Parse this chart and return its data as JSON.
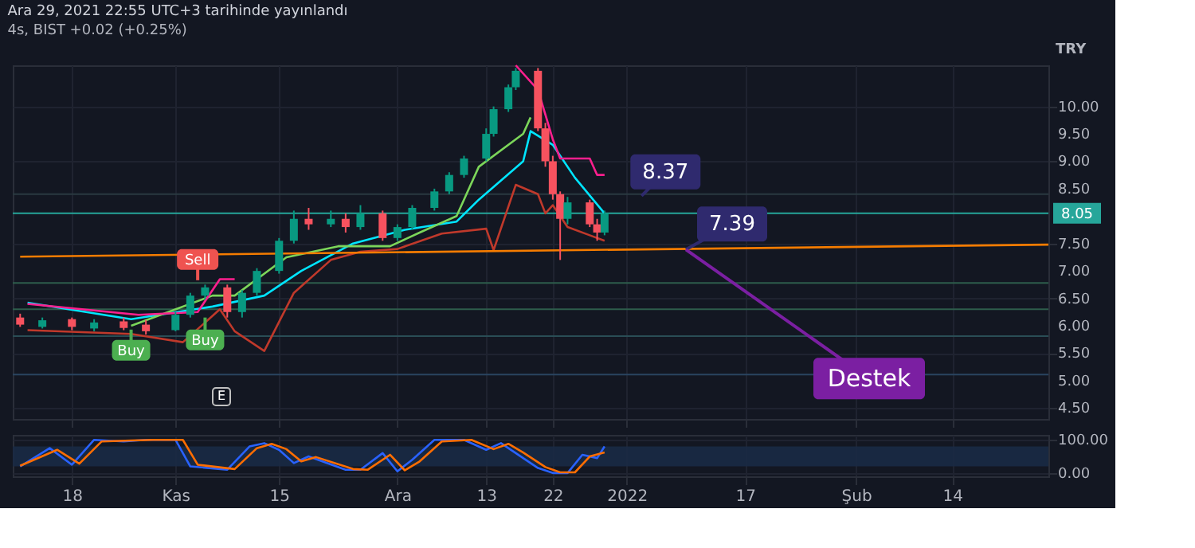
{
  "chart_data": [
    {
      "type": "candlestick",
      "title": "Ara 29, 2021 22:55 UTC+3 tarihinde yayınlandı",
      "subtitle": "4s, BIST +0.02 (+0.25%)",
      "ylabel": "TRY",
      "x": [
        "2021-10-11",
        "2021-10-14",
        "2021-10-18",
        "2021-10-21",
        "2021-10-25",
        "2021-10-28",
        "2021-11-01",
        "2021-11-03",
        "2021-11-05",
        "2021-11-08",
        "2021-11-10",
        "2021-11-12",
        "2021-11-15",
        "2021-11-17",
        "2021-11-19",
        "2021-11-22",
        "2021-11-24",
        "2021-11-26",
        "2021-11-29",
        "2021-12-01",
        "2021-12-03",
        "2021-12-06",
        "2021-12-08",
        "2021-12-10",
        "2021-12-13",
        "2021-12-14",
        "2021-12-16",
        "2021-12-17",
        "2021-12-20",
        "2021-12-21",
        "2021-12-22",
        "2021-12-23",
        "2021-12-24",
        "2021-12-27",
        "2021-12-28",
        "2021-12-29"
      ],
      "ohlc": [
        [
          6.15,
          6.22,
          5.98,
          6.02
        ],
        [
          5.98,
          6.15,
          5.95,
          6.1
        ],
        [
          6.12,
          6.15,
          5.92,
          5.98
        ],
        [
          5.95,
          6.12,
          5.9,
          6.06
        ],
        [
          6.08,
          6.15,
          5.92,
          5.96
        ],
        [
          6.02,
          6.1,
          5.84,
          5.9
        ],
        [
          5.92,
          6.25,
          5.9,
          6.2
        ],
        [
          6.2,
          6.6,
          6.15,
          6.55
        ],
        [
          6.55,
          6.75,
          6.48,
          6.7
        ],
        [
          6.7,
          6.75,
          6.15,
          6.25
        ],
        [
          6.25,
          6.65,
          6.15,
          6.6
        ],
        [
          6.6,
          7.05,
          6.55,
          7.0
        ],
        [
          7.0,
          7.6,
          6.95,
          7.55
        ],
        [
          7.55,
          8.1,
          7.5,
          7.95
        ],
        [
          7.95,
          8.15,
          7.75,
          7.85
        ],
        [
          7.85,
          8.1,
          7.8,
          7.95
        ],
        [
          7.95,
          8.05,
          7.7,
          7.8
        ],
        [
          7.8,
          8.2,
          7.75,
          8.05
        ],
        [
          8.05,
          8.1,
          7.55,
          7.6
        ],
        [
          7.6,
          7.85,
          7.55,
          7.8
        ],
        [
          7.8,
          8.2,
          7.75,
          8.15
        ],
        [
          8.15,
          8.5,
          8.1,
          8.45
        ],
        [
          8.45,
          8.8,
          8.4,
          8.75
        ],
        [
          8.75,
          9.1,
          8.7,
          9.05
        ],
        [
          9.05,
          9.6,
          9.0,
          9.5
        ],
        [
          9.5,
          10.0,
          9.45,
          9.95
        ],
        [
          9.95,
          10.4,
          9.9,
          10.35
        ],
        [
          10.35,
          10.7,
          10.3,
          10.65
        ],
        [
          10.65,
          10.7,
          9.55,
          9.6
        ],
        [
          9.6,
          9.7,
          8.9,
          9.0
        ],
        [
          9.0,
          9.1,
          8.3,
          8.4
        ],
        [
          8.4,
          8.45,
          7.2,
          7.95
        ],
        [
          7.95,
          8.35,
          7.85,
          8.25
        ],
        [
          8.25,
          8.3,
          7.8,
          7.85
        ],
        [
          7.85,
          7.95,
          7.55,
          7.7
        ],
        [
          7.7,
          8.1,
          7.65,
          8.05
        ]
      ],
      "series": [
        {
          "type": "line",
          "color": "#00e5ff",
          "x": [
            "2021-10-12",
            "2021-10-26",
            "2021-11-06",
            "2021-11-13",
            "2021-11-18",
            "2021-11-25",
            "2021-12-02",
            "2021-12-09",
            "2021-12-12",
            "2021-12-18",
            "2021-12-19",
            "2021-12-22",
            "2021-12-25",
            "2021-12-29"
          ],
          "values": [
            6.42,
            6.12,
            6.35,
            6.55,
            7.0,
            7.5,
            7.75,
            7.9,
            8.3,
            9.0,
            9.55,
            9.3,
            8.7,
            8.05
          ]
        },
        {
          "type": "line",
          "color": "#7cd65a",
          "x": [
            "2021-10-26",
            "2021-11-06",
            "2021-11-09",
            "2021-11-16",
            "2021-11-23",
            "2021-11-30",
            "2021-12-04",
            "2021-12-09",
            "2021-12-12",
            "2021-12-18",
            "2021-12-19"
          ],
          "values": [
            6.0,
            6.55,
            6.55,
            7.25,
            7.45,
            7.45,
            7.7,
            8.0,
            8.9,
            9.5,
            9.8
          ]
        },
        {
          "type": "line",
          "color": "#ff1f8e",
          "x": [
            "2021-10-12",
            "2021-10-27",
            "2021-11-04",
            "2021-11-07",
            "2021-11-09",
            "2021-11-12",
            "2021-12-17",
            "2021-12-20",
            "2021-12-22",
            "2021-12-23",
            "2021-12-27",
            "2021-12-28",
            "2021-12-29"
          ],
          "values": [
            6.4,
            6.2,
            6.25,
            6.85,
            6.85,
            null,
            10.75,
            10.3,
            9.4,
            9.05,
            9.05,
            8.75,
            8.75
          ]
        },
        {
          "type": "line",
          "color": "#c0392b",
          "x": [
            "2021-10-12",
            "2021-10-26",
            "2021-11-02",
            "2021-11-07",
            "2021-11-09",
            "2021-11-13",
            "2021-11-17",
            "2021-11-22",
            "2021-11-26",
            "2021-12-01",
            "2021-12-07",
            "2021-12-13",
            "2021-12-14",
            "2021-12-17",
            "2021-12-20",
            "2021-12-21",
            "2021-12-22",
            "2021-12-24",
            "2021-12-27",
            "2021-12-29"
          ],
          "values": [
            5.92,
            5.85,
            5.7,
            6.3,
            5.9,
            5.54,
            6.6,
            7.2,
            7.35,
            7.4,
            7.68,
            7.77,
            7.38,
            8.57,
            8.4,
            8.05,
            8.2,
            7.8,
            7.65,
            7.55
          ]
        },
        {
          "type": "line",
          "color": "#f57c00",
          "x": [
            "2021-10-11",
            "2022-02-27"
          ],
          "values": [
            7.26,
            7.48
          ]
        }
      ],
      "ref_lines": [
        {
          "axis": "y",
          "value": 8.05,
          "label": "8.05",
          "color": "#26a69a"
        },
        {
          "axis": "y",
          "value": 8.4,
          "color": "#2a3a40"
        },
        {
          "axis": "y",
          "value": 6.78,
          "color": "#2e5d4b"
        },
        {
          "axis": "y",
          "value": 6.3,
          "color": "#2e5d4b"
        },
        {
          "axis": "y",
          "value": 5.81,
          "color": "#2a4d55"
        },
        {
          "axis": "y",
          "value": 5.11,
          "color": "#2a4560"
        }
      ],
      "annotations": [
        {
          "text": "Sell",
          "x": "2021-11-04",
          "y": 6.83
        },
        {
          "text": "Buy",
          "x": "2021-10-26",
          "y": 5.93
        },
        {
          "text": "Buy",
          "x": "2021-11-05",
          "y": 6.15
        },
        {
          "text": "8.37",
          "x": "2022-01-03",
          "y": 8.37
        },
        {
          "text": "7.39",
          "x": "2022-01-09",
          "y": 7.39
        },
        {
          "text": "Destek",
          "x": "2022-01-09",
          "y": 7.39
        },
        "E"
      ],
      "xlim": [
        "2021-10-10",
        "2022-02-27"
      ],
      "xticks": [
        {
          "value": "2021-10-18",
          "label": null
        },
        {
          "value": "2021-11-01",
          "label": null
        },
        {
          "value": "2021-11-15",
          "label": null
        },
        {
          "value": "2021-12-01",
          "label": null
        },
        {
          "value": "2021-12-13",
          "label": null
        },
        {
          "value": "2021-12-22",
          "label": null
        },
        {
          "value": "2022-01-01",
          "label": null
        },
        {
          "value": "2022-01-17",
          "label": null
        },
        {
          "value": "2022-02-01",
          "label": null
        },
        {
          "value": "2022-02-14",
          "label": null
        }
      ],
      "ylim": [
        4.3,
        10.75
      ],
      "yticks": [
        {
          "value": 4.5,
          "label": "4.50"
        },
        {
          "value": 5,
          "label": "5.00"
        },
        {
          "value": 5.5,
          "label": "5.50"
        },
        {
          "value": 6,
          "label": "6.00"
        },
        {
          "value": 6.5,
          "label": "6.50"
        },
        {
          "value": 7,
          "label": "7.00"
        },
        {
          "value": 7.5,
          "label": "7.50"
        },
        {
          "value": 8.5,
          "label": "8.50"
        },
        {
          "value": 9,
          "label": "9.00"
        },
        {
          "value": 9.5,
          "label": "9.50"
        },
        {
          "value": 10,
          "label": "10.00"
        }
      ],
      "grid": true,
      "tick_labels": "y"
    },
    {
      "type": "line",
      "series": [
        {
          "color": "#2962ff",
          "x": [
            "2021-10-11",
            "2021-10-15",
            "2021-10-18",
            "2021-10-21",
            "2021-10-25",
            "2021-10-28",
            "2021-11-01",
            "2021-11-03",
            "2021-11-08",
            "2021-11-11",
            "2021-11-13",
            "2021-11-15",
            "2021-11-17",
            "2021-11-19",
            "2021-11-24",
            "2021-11-26",
            "2021-11-29",
            "2021-12-01",
            "2021-12-03",
            "2021-12-06",
            "2021-12-10",
            "2021-12-13",
            "2021-12-15",
            "2021-12-17",
            "2021-12-20",
            "2021-12-22",
            "2021-12-24",
            "2021-12-26",
            "2021-12-28",
            "2021-12-29"
          ],
          "values": [
            20,
            75,
            25,
            100,
            95,
            100,
            100,
            20,
            10,
            80,
            90,
            70,
            30,
            50,
            10,
            10,
            60,
            5,
            40,
            100,
            100,
            70,
            90,
            60,
            15,
            0,
            0,
            55,
            45,
            80
          ]
        },
        {
          "color": "#ff6d00",
          "x": [
            "2021-10-11",
            "2021-10-16",
            "2021-10-19",
            "2021-10-22",
            "2021-10-26",
            "2021-10-29",
            "2021-11-02",
            "2021-11-04",
            "2021-11-09",
            "2021-11-12",
            "2021-11-14",
            "2021-11-16",
            "2021-11-18",
            "2021-11-20",
            "2021-11-25",
            "2021-11-27",
            "2021-11-30",
            "2021-12-02",
            "2021-12-04",
            "2021-12-07",
            "2021-12-11",
            "2021-12-14",
            "2021-12-16",
            "2021-12-18",
            "2021-12-21",
            "2021-12-23",
            "2021-12-25",
            "2021-12-27",
            "2021-12-29"
          ],
          "values": [
            22,
            70,
            28,
            95,
            98,
            100,
            100,
            25,
            12,
            75,
            88,
            72,
            35,
            48,
            12,
            10,
            55,
            8,
            35,
            95,
            100,
            72,
            88,
            62,
            18,
            2,
            2,
            50,
            62
          ]
        }
      ],
      "bands": [
        {
          "axis": "y",
          "from": 20,
          "to": 80,
          "color": "#1a2a45"
        }
      ],
      "xlim": [
        "2021-10-10",
        "2022-02-27"
      ],
      "xticks": [
        {
          "value": "2021-10-18",
          "label": "18"
        },
        {
          "value": "2021-11-01",
          "label": "Kas"
        },
        {
          "value": "2021-11-15",
          "label": "15"
        },
        {
          "value": "2021-12-01",
          "label": "Ara"
        },
        {
          "value": "2021-12-13",
          "label": "13"
        },
        {
          "value": "2021-12-22",
          "label": "22"
        },
        {
          "value": "2022-01-01",
          "label": "2022"
        },
        {
          "value": "2022-01-17",
          "label": "17"
        },
        {
          "value": "2022-02-01",
          "label": "Şub"
        },
        {
          "value": "2022-02-14",
          "label": "14"
        }
      ],
      "ylim": [
        -10,
        115
      ],
      "yticks": [
        {
          "value": 0,
          "label": "0.00"
        },
        {
          "value": 100,
          "label": "100.00"
        }
      ],
      "grid": true
    }
  ]
}
